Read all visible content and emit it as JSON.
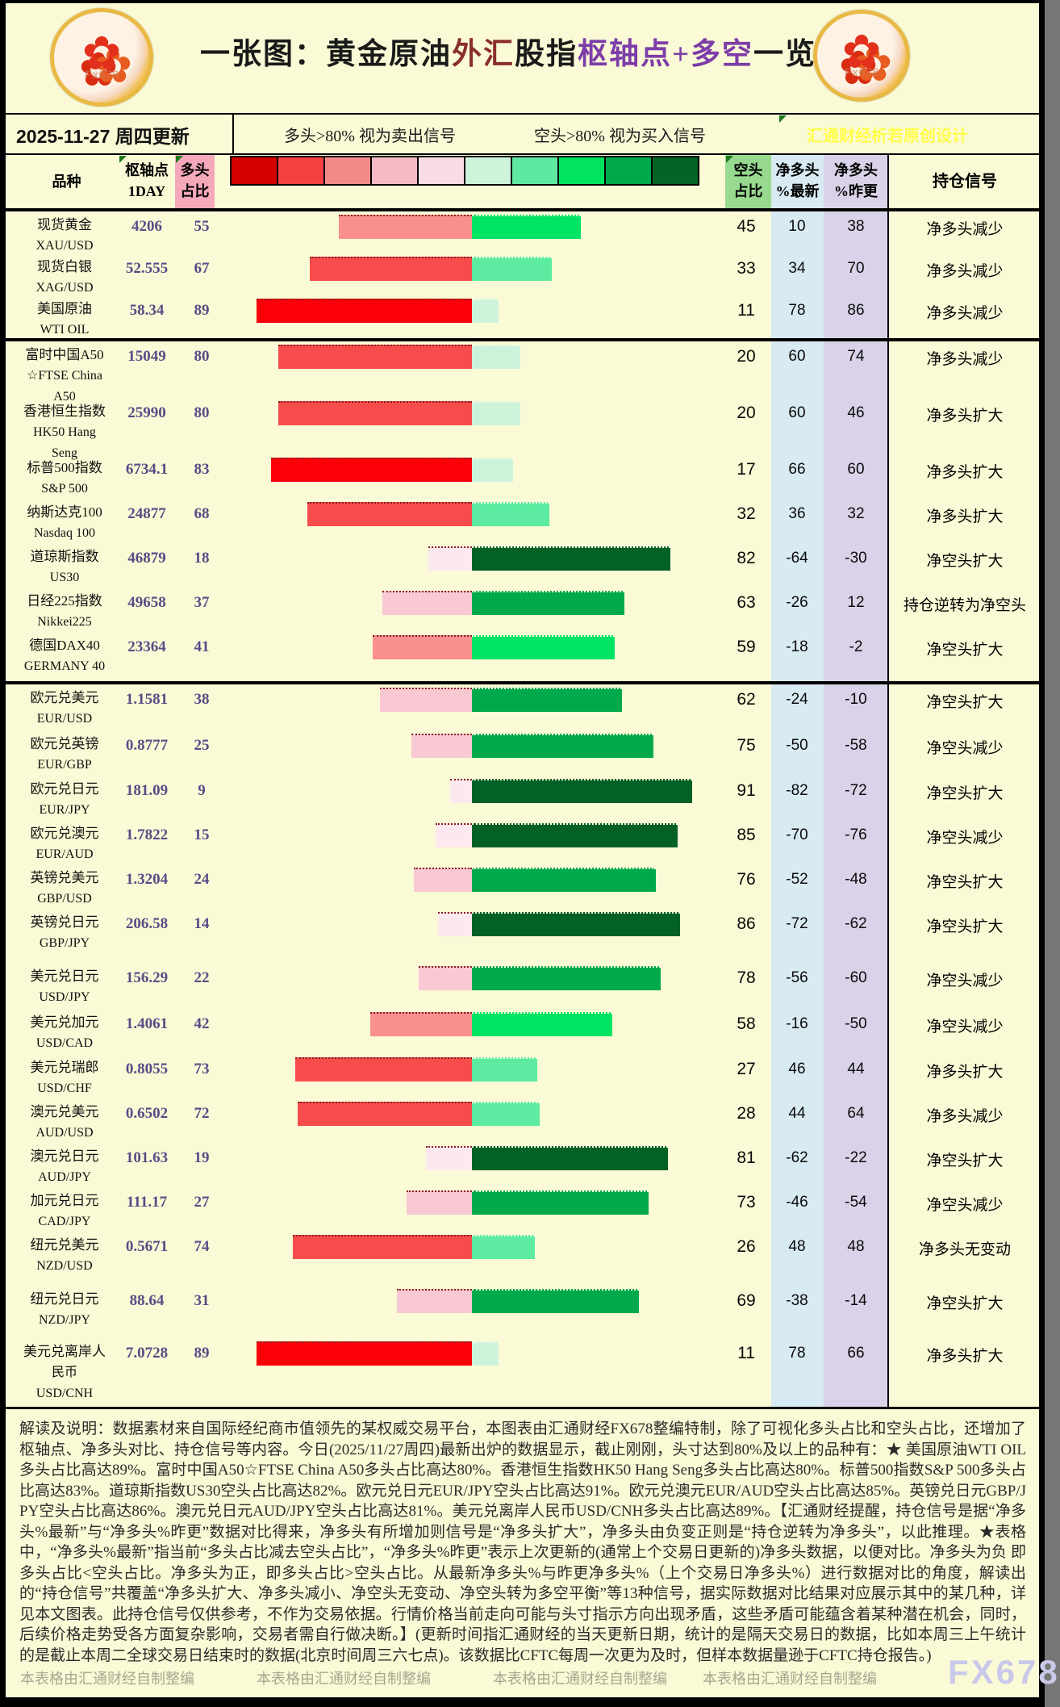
{
  "title": {
    "segments": [
      {
        "text": "一张图：黄金原油",
        "color": "#1a1a1a"
      },
      {
        "text": "外汇",
        "color": "#8b2e2e"
      },
      {
        "text": "股指",
        "color": "#1a1a1a"
      },
      {
        "text": "枢轴点+多空",
        "color": "#7d3da8"
      },
      {
        "text": "一览",
        "color": "#1a1a1a"
      }
    ]
  },
  "date_bar": {
    "date": "2025-11-27 周四更新",
    "long_note": "多头>80% 视为卖出信号",
    "short_note": "空头>80% 视为买入信号",
    "credit": "汇通财经析若原创设计"
  },
  "header": {
    "instrument": "品种",
    "pivot_l1": "枢轴点",
    "pivot_l2": "1DAY",
    "long_l1": "多头",
    "long_l2": "占比",
    "short_l1": "空头",
    "short_l2": "占比",
    "net_latest_l1": "净多头",
    "net_latest_l2": "%最新",
    "net_prev_l1": "净多头",
    "net_prev_l2": "%昨更",
    "signal": "持仓信号"
  },
  "legend_colors": [
    "#d40000",
    "#f44141",
    "#f28a8a",
    "#f6bac5",
    "#fbdce4",
    "#cdf3db",
    "#5fe8a3",
    "#00e45e",
    "#00a94b",
    "#056326"
  ],
  "bar_colors": {
    "long_bands": [
      "#fce9ef",
      "#f8c9d3",
      "#f98f8f",
      "#f64c4c",
      "#fb0008"
    ],
    "short_bands": [
      "#cdf3db",
      "#5ceba0",
      "#00e463",
      "#00a94b",
      "#046126"
    ]
  },
  "rows": [
    {
      "name_lines": [
        "现货黄金",
        "XAU/USD"
      ],
      "pivot": "4206",
      "long": 55,
      "short": 45,
      "net_latest": "10",
      "net_prev": "38",
      "signal": "净多头减少",
      "group_end": false
    },
    {
      "name_lines": [
        "现货白银",
        "XAG/USD"
      ],
      "pivot": "52.555",
      "long": 67,
      "short": 33,
      "net_latest": "34",
      "net_prev": "70",
      "signal": "净多头减少",
      "group_end": false
    },
    {
      "name_lines": [
        "美国原油",
        "WTI OIL"
      ],
      "pivot": "58.34",
      "long": 89,
      "short": 11,
      "net_latest": "78",
      "net_prev": "86",
      "signal": "净多头减少",
      "group_end": true
    },
    {
      "name_lines": [
        "富时中国A50",
        "☆FTSE China",
        "A50"
      ],
      "pivot": "15049",
      "long": 80,
      "short": 20,
      "net_latest": "60",
      "net_prev": "74",
      "signal": "净多头减少",
      "group_end": false
    },
    {
      "name_lines": [
        "香港恒生指数",
        "HK50 Hang",
        "Seng"
      ],
      "pivot": "25990",
      "long": 80,
      "short": 20,
      "net_latest": "60",
      "net_prev": "46",
      "signal": "净多头扩大",
      "group_end": false
    },
    {
      "name_lines": [
        "标普500指数",
        "S&P 500"
      ],
      "pivot": "6734.1",
      "long": 83,
      "short": 17,
      "net_latest": "66",
      "net_prev": "60",
      "signal": "净多头扩大",
      "group_end": false
    },
    {
      "name_lines": [
        "纳斯达克100",
        "Nasdaq 100"
      ],
      "pivot": "24877",
      "long": 68,
      "short": 32,
      "net_latest": "36",
      "net_prev": "32",
      "signal": "净多头扩大",
      "group_end": false
    },
    {
      "name_lines": [
        "道琼斯指数",
        "US30"
      ],
      "pivot": "46879",
      "long": 18,
      "short": 82,
      "net_latest": "-64",
      "net_prev": "-30",
      "signal": "净空头扩大",
      "group_end": false
    },
    {
      "name_lines": [
        "日经225指数",
        "Nikkei225"
      ],
      "pivot": "49658",
      "long": 37,
      "short": 63,
      "net_latest": "-26",
      "net_prev": "12",
      "signal": "持仓逆转为净空头",
      "group_end": false
    },
    {
      "name_lines": [
        "德国DAX40",
        "GERMANY 40"
      ],
      "pivot": "23364",
      "long": 41,
      "short": 59,
      "net_latest": "-18",
      "net_prev": "-2",
      "signal": "净空头扩大",
      "group_end": true
    },
    {
      "name_lines": [
        "欧元兑美元",
        "EUR/USD"
      ],
      "pivot": "1.1581",
      "long": 38,
      "short": 62,
      "net_latest": "-24",
      "net_prev": "-10",
      "signal": "净空头扩大",
      "group_end": false
    },
    {
      "name_lines": [
        "欧元兑英镑",
        "EUR/GBP"
      ],
      "pivot": "0.8777",
      "long": 25,
      "short": 75,
      "net_latest": "-50",
      "net_prev": "-58",
      "signal": "净空头减少",
      "group_end": false
    },
    {
      "name_lines": [
        "欧元兑日元",
        "EUR/JPY"
      ],
      "pivot": "181.09",
      "long": 9,
      "short": 91,
      "net_latest": "-82",
      "net_prev": "-72",
      "signal": "净空头扩大",
      "group_end": false
    },
    {
      "name_lines": [
        "欧元兑澳元",
        "EUR/AUD"
      ],
      "pivot": "1.7822",
      "long": 15,
      "short": 85,
      "net_latest": "-70",
      "net_prev": "-76",
      "signal": "净空头减少",
      "group_end": false
    },
    {
      "name_lines": [
        "英镑兑美元",
        "GBP/USD"
      ],
      "pivot": "1.3204",
      "long": 24,
      "short": 76,
      "net_latest": "-52",
      "net_prev": "-48",
      "signal": "净空头扩大",
      "group_end": false
    },
    {
      "name_lines": [
        "英镑兑日元",
        "GBP/JPY"
      ],
      "pivot": "206.58",
      "long": 14,
      "short": 86,
      "net_latest": "-72",
      "net_prev": "-62",
      "signal": "净空头扩大",
      "group_end": false
    },
    {
      "name_lines": [
        "美元兑日元",
        "USD/JPY"
      ],
      "pivot": "156.29",
      "long": 22,
      "short": 78,
      "net_latest": "-56",
      "net_prev": "-60",
      "signal": "净空头减少",
      "group_end": false
    },
    {
      "name_lines": [
        "美元兑加元",
        "USD/CAD"
      ],
      "pivot": "1.4061",
      "long": 42,
      "short": 58,
      "net_latest": "-16",
      "net_prev": "-50",
      "signal": "净空头减少",
      "group_end": false
    },
    {
      "name_lines": [
        "美元兑瑞郎",
        "USD/CHF"
      ],
      "pivot": "0.8055",
      "long": 73,
      "short": 27,
      "net_latest": "46",
      "net_prev": "44",
      "signal": "净多头扩大",
      "group_end": false
    },
    {
      "name_lines": [
        "澳元兑美元",
        "AUD/USD"
      ],
      "pivot": "0.6502",
      "long": 72,
      "short": 28,
      "net_latest": "44",
      "net_prev": "64",
      "signal": "净多头减少",
      "group_end": false
    },
    {
      "name_lines": [
        "澳元兑日元",
        "AUD/JPY"
      ],
      "pivot": "101.63",
      "long": 19,
      "short": 81,
      "net_latest": "-62",
      "net_prev": "-22",
      "signal": "净空头扩大",
      "group_end": false
    },
    {
      "name_lines": [
        "加元兑日元",
        "CAD/JPY"
      ],
      "pivot": "111.17",
      "long": 27,
      "short": 73,
      "net_latest": "-46",
      "net_prev": "-54",
      "signal": "净空头减少",
      "group_end": false
    },
    {
      "name_lines": [
        "纽元兑美元",
        "NZD/USD"
      ],
      "pivot": "0.5671",
      "long": 74,
      "short": 26,
      "net_latest": "48",
      "net_prev": "48",
      "signal": "净多头无变动",
      "group_end": false
    },
    {
      "name_lines": [
        "纽元兑日元",
        "NZD/JPY"
      ],
      "pivot": "88.64",
      "long": 31,
      "short": 69,
      "net_latest": "-38",
      "net_prev": "-14",
      "signal": "净空头扩大",
      "group_end": false
    },
    {
      "name_lines": [
        "美元兑离岸人",
        "民币",
        "USD/CNH"
      ],
      "pivot": "7.0728",
      "long": 89,
      "short": 11,
      "net_latest": "78",
      "net_prev": "66",
      "signal": "净多头扩大",
      "group_end": false
    }
  ],
  "explanation": "解读及说明：数据素材来自国际经纪商市值领先的某权威交易平台，本图表由汇通财经FX678整编特制，除了可视化多头占比和空头占比，还增加了枢轴点、净多头对比、持仓信号等内容。今日(2025/11/27周四)最新出炉的数据显示，截止刚刚，头寸达到80%及以上的品种有：★ 美国原油WTI OIL多头占比高达89%。富时中国A50☆FTSE China A50多头占比高达80%。香港恒生指数HK50 Hang Seng多头占比高达80%。标普500指数S&P 500多头占比高达83%。道琼斯指数US30空头占比高达82%。欧元兑日元EUR/JPY空头占比高达91%。欧元兑澳元EUR/AUD空头占比高达85%。英镑兑日元GBP/JPY空头占比高达86%。澳元兑日元AUD/JPY空头占比高达81%。美元兑离岸人民币USD/CNH多头占比高达89%。【汇通财经提醒，持仓信号是据“净多头%最新”与“净多头%昨更”数据对比得来，净多头有所增加则信号是“净多头扩大”，净多头由负变正则是“持仓逆转为净多头”，以此推理。★表格中，“净多头%最新”指当前“多头占比减去空头占比”，“净多头%昨更”表示上次更新的(通常上个交易日更新的)净多头数据，以便对比。净多头为负 即多头占比<空头占比。净多头为正，即多头占比>空头占比。从最新净多头%与昨更净多头%（上个交易日净多头%）进行数据对比的角度，解读出的“持仓信号”共覆盖“净多头扩大、净多头减小、净空头无变动、净空头转为多空平衡”等13种信号，据实际数据对比结果对应展示其中的某几种，详见本文图表。此持仓信号仅供参考，不作为交易依据。行情价格当前走向可能与头寸指示方向出现矛盾，这些矛盾可能蕴含着某种潜在机会，同时，后续价格走势受各方面复杂影响，交易者需自行做决断。】(更新时间指汇通财经的当天更新日期，统计的是隔天交易日的数据，比如本周三上午统计的是截止本周二全球交易日结束时的数据(北京时间周三六七点)。该数据比CFTC每周一次更为及时，但样本数据量逊于CFTC持仓报告。)",
  "footer": {
    "credit": "本表格由汇通财经自制整编",
    "watermark": "FX678"
  },
  "chart_data": {
    "type": "bar",
    "title": "一张图：黄金原油外汇股指枢轴点+多空一览",
    "note": "双向条形图：红色=多头占比(向左)，绿色=空头占比(向右)，按20%分档着色",
    "categories": [
      "XAU/USD",
      "XAG/USD",
      "WTI OIL",
      "FTSE China A50",
      "HK50 Hang Seng",
      "S&P 500",
      "Nasdaq 100",
      "US30",
      "Nikkei225",
      "GERMANY 40",
      "EUR/USD",
      "EUR/GBP",
      "EUR/JPY",
      "EUR/AUD",
      "GBP/USD",
      "GBP/JPY",
      "USD/JPY",
      "USD/CAD",
      "USD/CHF",
      "AUD/USD",
      "AUD/JPY",
      "CAD/JPY",
      "NZD/USD",
      "NZD/JPY",
      "USD/CNH"
    ],
    "series": [
      {
        "name": "枢轴点1DAY",
        "values": [
          4206,
          52.555,
          58.34,
          15049,
          25990,
          6734.1,
          24877,
          46879,
          49658,
          23364,
          1.1581,
          0.8777,
          181.09,
          1.7822,
          1.3204,
          206.58,
          156.29,
          1.4061,
          0.8055,
          0.6502,
          101.63,
          111.17,
          0.5671,
          88.64,
          7.0728
        ]
      },
      {
        "name": "多头占比",
        "values": [
          55,
          67,
          89,
          80,
          80,
          83,
          68,
          18,
          37,
          41,
          38,
          25,
          9,
          15,
          24,
          14,
          22,
          42,
          73,
          72,
          19,
          27,
          74,
          31,
          89
        ]
      },
      {
        "name": "空头占比",
        "values": [
          45,
          33,
          11,
          20,
          20,
          17,
          32,
          82,
          63,
          59,
          62,
          75,
          91,
          85,
          76,
          86,
          78,
          58,
          27,
          28,
          81,
          73,
          26,
          69,
          11
        ]
      },
      {
        "name": "净多头%最新",
        "values": [
          10,
          34,
          78,
          60,
          60,
          66,
          36,
          -64,
          -26,
          -18,
          -24,
          -50,
          -82,
          -70,
          -52,
          -72,
          -56,
          -16,
          46,
          44,
          -62,
          -46,
          48,
          -38,
          78
        ]
      },
      {
        "name": "净多头%昨更",
        "values": [
          38,
          70,
          86,
          74,
          46,
          60,
          32,
          -30,
          12,
          -2,
          -10,
          -58,
          -72,
          -76,
          -48,
          -62,
          -60,
          -50,
          44,
          64,
          -22,
          -54,
          48,
          -14,
          66
        ]
      }
    ],
    "xlim": [
      100,
      100
    ],
    "legend_position": "top"
  }
}
